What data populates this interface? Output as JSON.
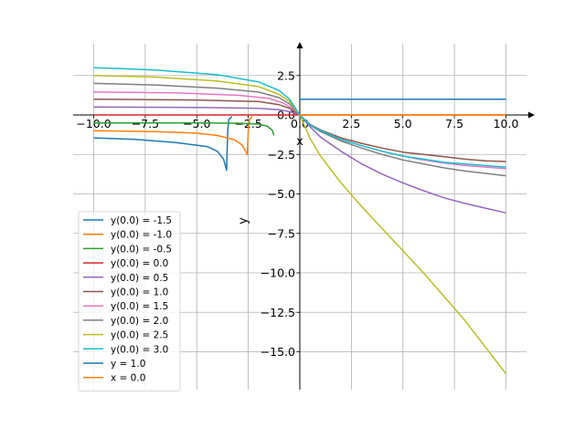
{
  "chart_data": {
    "type": "line",
    "title": "",
    "xlabel": "x",
    "ylabel": "y",
    "xlim": [
      -11.0,
      11.0
    ],
    "ylim": [
      -17.5,
      4.2
    ],
    "grid": true,
    "legend_position": "lower-left",
    "x_ticks": [
      -10.0,
      -7.5,
      -5.0,
      -2.5,
      0.0,
      2.5,
      5.0,
      7.5,
      10.0
    ],
    "x_tick_labels": [
      "−10.0",
      "−7.5",
      "−5.0",
      "−2.5",
      "0.0",
      "2.5",
      "5.0",
      "7.5",
      "10.0"
    ],
    "y_ticks": [
      2.5,
      0.0,
      -2.5,
      -5.0,
      -7.5,
      -10.0,
      -12.5,
      -15.0
    ],
    "y_tick_labels": [
      "2.5",
      "0.0",
      "−2.5",
      "−5.0",
      "−7.5",
      "−10.0",
      "−12.5",
      "−15.0"
    ],
    "series": [
      {
        "name": "y(0.0) = -1.5",
        "color": "#1f77b4",
        "points": [
          [
            -10,
            -1.45
          ],
          [
            -8,
            -1.55
          ],
          [
            -6,
            -1.75
          ],
          [
            -4.5,
            -2.0
          ],
          [
            -4,
            -2.3
          ],
          [
            -3.7,
            -2.8
          ],
          [
            -3.55,
            -3.5
          ],
          [
            -3.5,
            -1.0
          ],
          [
            -3.45,
            -0.3
          ],
          [
            -3.3,
            -0.1
          ]
        ]
      },
      {
        "name": "y(0.0) = -1.0",
        "color": "#ff7f0e",
        "points": [
          [
            -10,
            -1.0
          ],
          [
            -7,
            -1.05
          ],
          [
            -5,
            -1.15
          ],
          [
            -4,
            -1.3
          ],
          [
            -3.2,
            -1.55
          ],
          [
            -2.8,
            -1.9
          ],
          [
            -2.55,
            -2.5
          ],
          [
            -2.5,
            -1.0
          ],
          [
            -2.45,
            -0.3
          ],
          [
            -2.3,
            -0.1
          ]
        ]
      },
      {
        "name": "y(0.0) = -0.5",
        "color": "#2ca02c",
        "points": [
          [
            -10,
            -0.5
          ],
          [
            -5,
            -0.5
          ],
          [
            -3,
            -0.52
          ],
          [
            -2,
            -0.58
          ],
          [
            -1.6,
            -0.7
          ],
          [
            -1.35,
            -0.95
          ],
          [
            -1.25,
            -1.3
          ]
        ]
      },
      {
        "name": "y(0.0) = 0.0",
        "color": "#d62728",
        "points": [
          [
            -10,
            0.0
          ],
          [
            0,
            0.0
          ],
          [
            10,
            0.0
          ]
        ]
      },
      {
        "name": "y(0.0) = 0.5",
        "color": "#9467bd",
        "points": [
          [
            -10,
            0.5
          ],
          [
            -5,
            0.48
          ],
          [
            -2,
            0.42
          ],
          [
            -1,
            0.33
          ],
          [
            -0.5,
            0.22
          ],
          [
            0,
            0.0
          ],
          [
            0.5,
            -0.75
          ],
          [
            1,
            -1.4
          ],
          [
            2,
            -2.3
          ],
          [
            3,
            -3.1
          ],
          [
            4,
            -3.75
          ],
          [
            5,
            -4.3
          ],
          [
            6,
            -4.8
          ],
          [
            7,
            -5.25
          ],
          [
            8,
            -5.6
          ],
          [
            9,
            -5.9
          ],
          [
            10,
            -6.2
          ]
        ]
      },
      {
        "name": "y(0.0) = 1.0",
        "color": "#8c564b",
        "points": [
          [
            -10,
            1.0
          ],
          [
            -5,
            0.95
          ],
          [
            -2,
            0.85
          ],
          [
            -1,
            0.65
          ],
          [
            -0.5,
            0.42
          ],
          [
            0,
            0.0
          ],
          [
            0.5,
            -0.6
          ],
          [
            1,
            -0.95
          ],
          [
            2,
            -1.45
          ],
          [
            3,
            -1.8
          ],
          [
            4,
            -2.1
          ],
          [
            5,
            -2.35
          ],
          [
            6,
            -2.5
          ],
          [
            7,
            -2.65
          ],
          [
            8,
            -2.8
          ],
          [
            9,
            -2.9
          ],
          [
            10,
            -2.95
          ]
        ]
      },
      {
        "name": "y(0.0) = 1.5",
        "color": "#e377c2",
        "points": [
          [
            -10,
            1.45
          ],
          [
            -6,
            1.4
          ],
          [
            -3,
            1.25
          ],
          [
            -1.5,
            1.05
          ],
          [
            -0.8,
            0.75
          ],
          [
            -0.3,
            0.35
          ],
          [
            0,
            0.0
          ],
          [
            0.5,
            -0.65
          ],
          [
            1,
            -1.0
          ],
          [
            2,
            -1.55
          ],
          [
            3,
            -1.95
          ],
          [
            4,
            -2.3
          ],
          [
            5,
            -2.6
          ],
          [
            6,
            -2.85
          ],
          [
            7,
            -3.05
          ],
          [
            8,
            -3.2
          ],
          [
            9,
            -3.3
          ],
          [
            10,
            -3.4
          ]
        ]
      },
      {
        "name": "y(0.0) = 2.0",
        "color": "#7f7f7f",
        "points": [
          [
            -10,
            2.0
          ],
          [
            -7,
            1.9
          ],
          [
            -4,
            1.7
          ],
          [
            -2,
            1.45
          ],
          [
            -1,
            1.1
          ],
          [
            -0.5,
            0.7
          ],
          [
            0,
            0.0
          ],
          [
            0.5,
            -0.65
          ],
          [
            1,
            -1.05
          ],
          [
            2,
            -1.65
          ],
          [
            3,
            -2.1
          ],
          [
            4,
            -2.5
          ],
          [
            5,
            -2.85
          ],
          [
            6,
            -3.1
          ],
          [
            7,
            -3.35
          ],
          [
            8,
            -3.55
          ],
          [
            9,
            -3.7
          ],
          [
            10,
            -3.85
          ]
        ]
      },
      {
        "name": "y(0.0) = 2.5",
        "color": "#bcbd22",
        "points": [
          [
            -10,
            2.5
          ],
          [
            -7,
            2.4
          ],
          [
            -4,
            2.15
          ],
          [
            -2,
            1.8
          ],
          [
            -1,
            1.3
          ],
          [
            -0.5,
            0.85
          ],
          [
            0,
            0.0
          ],
          [
            0.5,
            -1.5
          ],
          [
            1,
            -2.6
          ],
          [
            2,
            -4.3
          ],
          [
            3,
            -5.8
          ],
          [
            4,
            -7.2
          ],
          [
            5,
            -8.6
          ],
          [
            6,
            -10.0
          ],
          [
            7,
            -11.5
          ],
          [
            8,
            -13.0
          ],
          [
            9,
            -14.7
          ],
          [
            10,
            -16.4
          ]
        ]
      },
      {
        "name": "y(0.0) = 3.0",
        "color": "#17becf",
        "points": [
          [
            -10,
            3.0
          ],
          [
            -7,
            2.85
          ],
          [
            -4,
            2.55
          ],
          [
            -2,
            2.1
          ],
          [
            -1,
            1.55
          ],
          [
            -0.5,
            1.0
          ],
          [
            0,
            0.0
          ],
          [
            0.5,
            -0.65
          ],
          [
            1,
            -1.0
          ],
          [
            2,
            -1.55
          ],
          [
            3,
            -1.95
          ],
          [
            4,
            -2.3
          ],
          [
            5,
            -2.6
          ],
          [
            6,
            -2.8
          ],
          [
            7,
            -3.0
          ],
          [
            8,
            -3.1
          ],
          [
            9,
            -3.2
          ],
          [
            10,
            -3.3
          ]
        ]
      },
      {
        "name": "y = 1.0",
        "color": "#1f77b4",
        "points": [
          [
            0,
            1.0
          ],
          [
            10,
            1.0
          ]
        ]
      },
      {
        "name": "x = 0.0",
        "color": "#ff7f0e",
        "points": [
          [
            0,
            0.0
          ],
          [
            10,
            0.0
          ]
        ]
      }
    ]
  }
}
